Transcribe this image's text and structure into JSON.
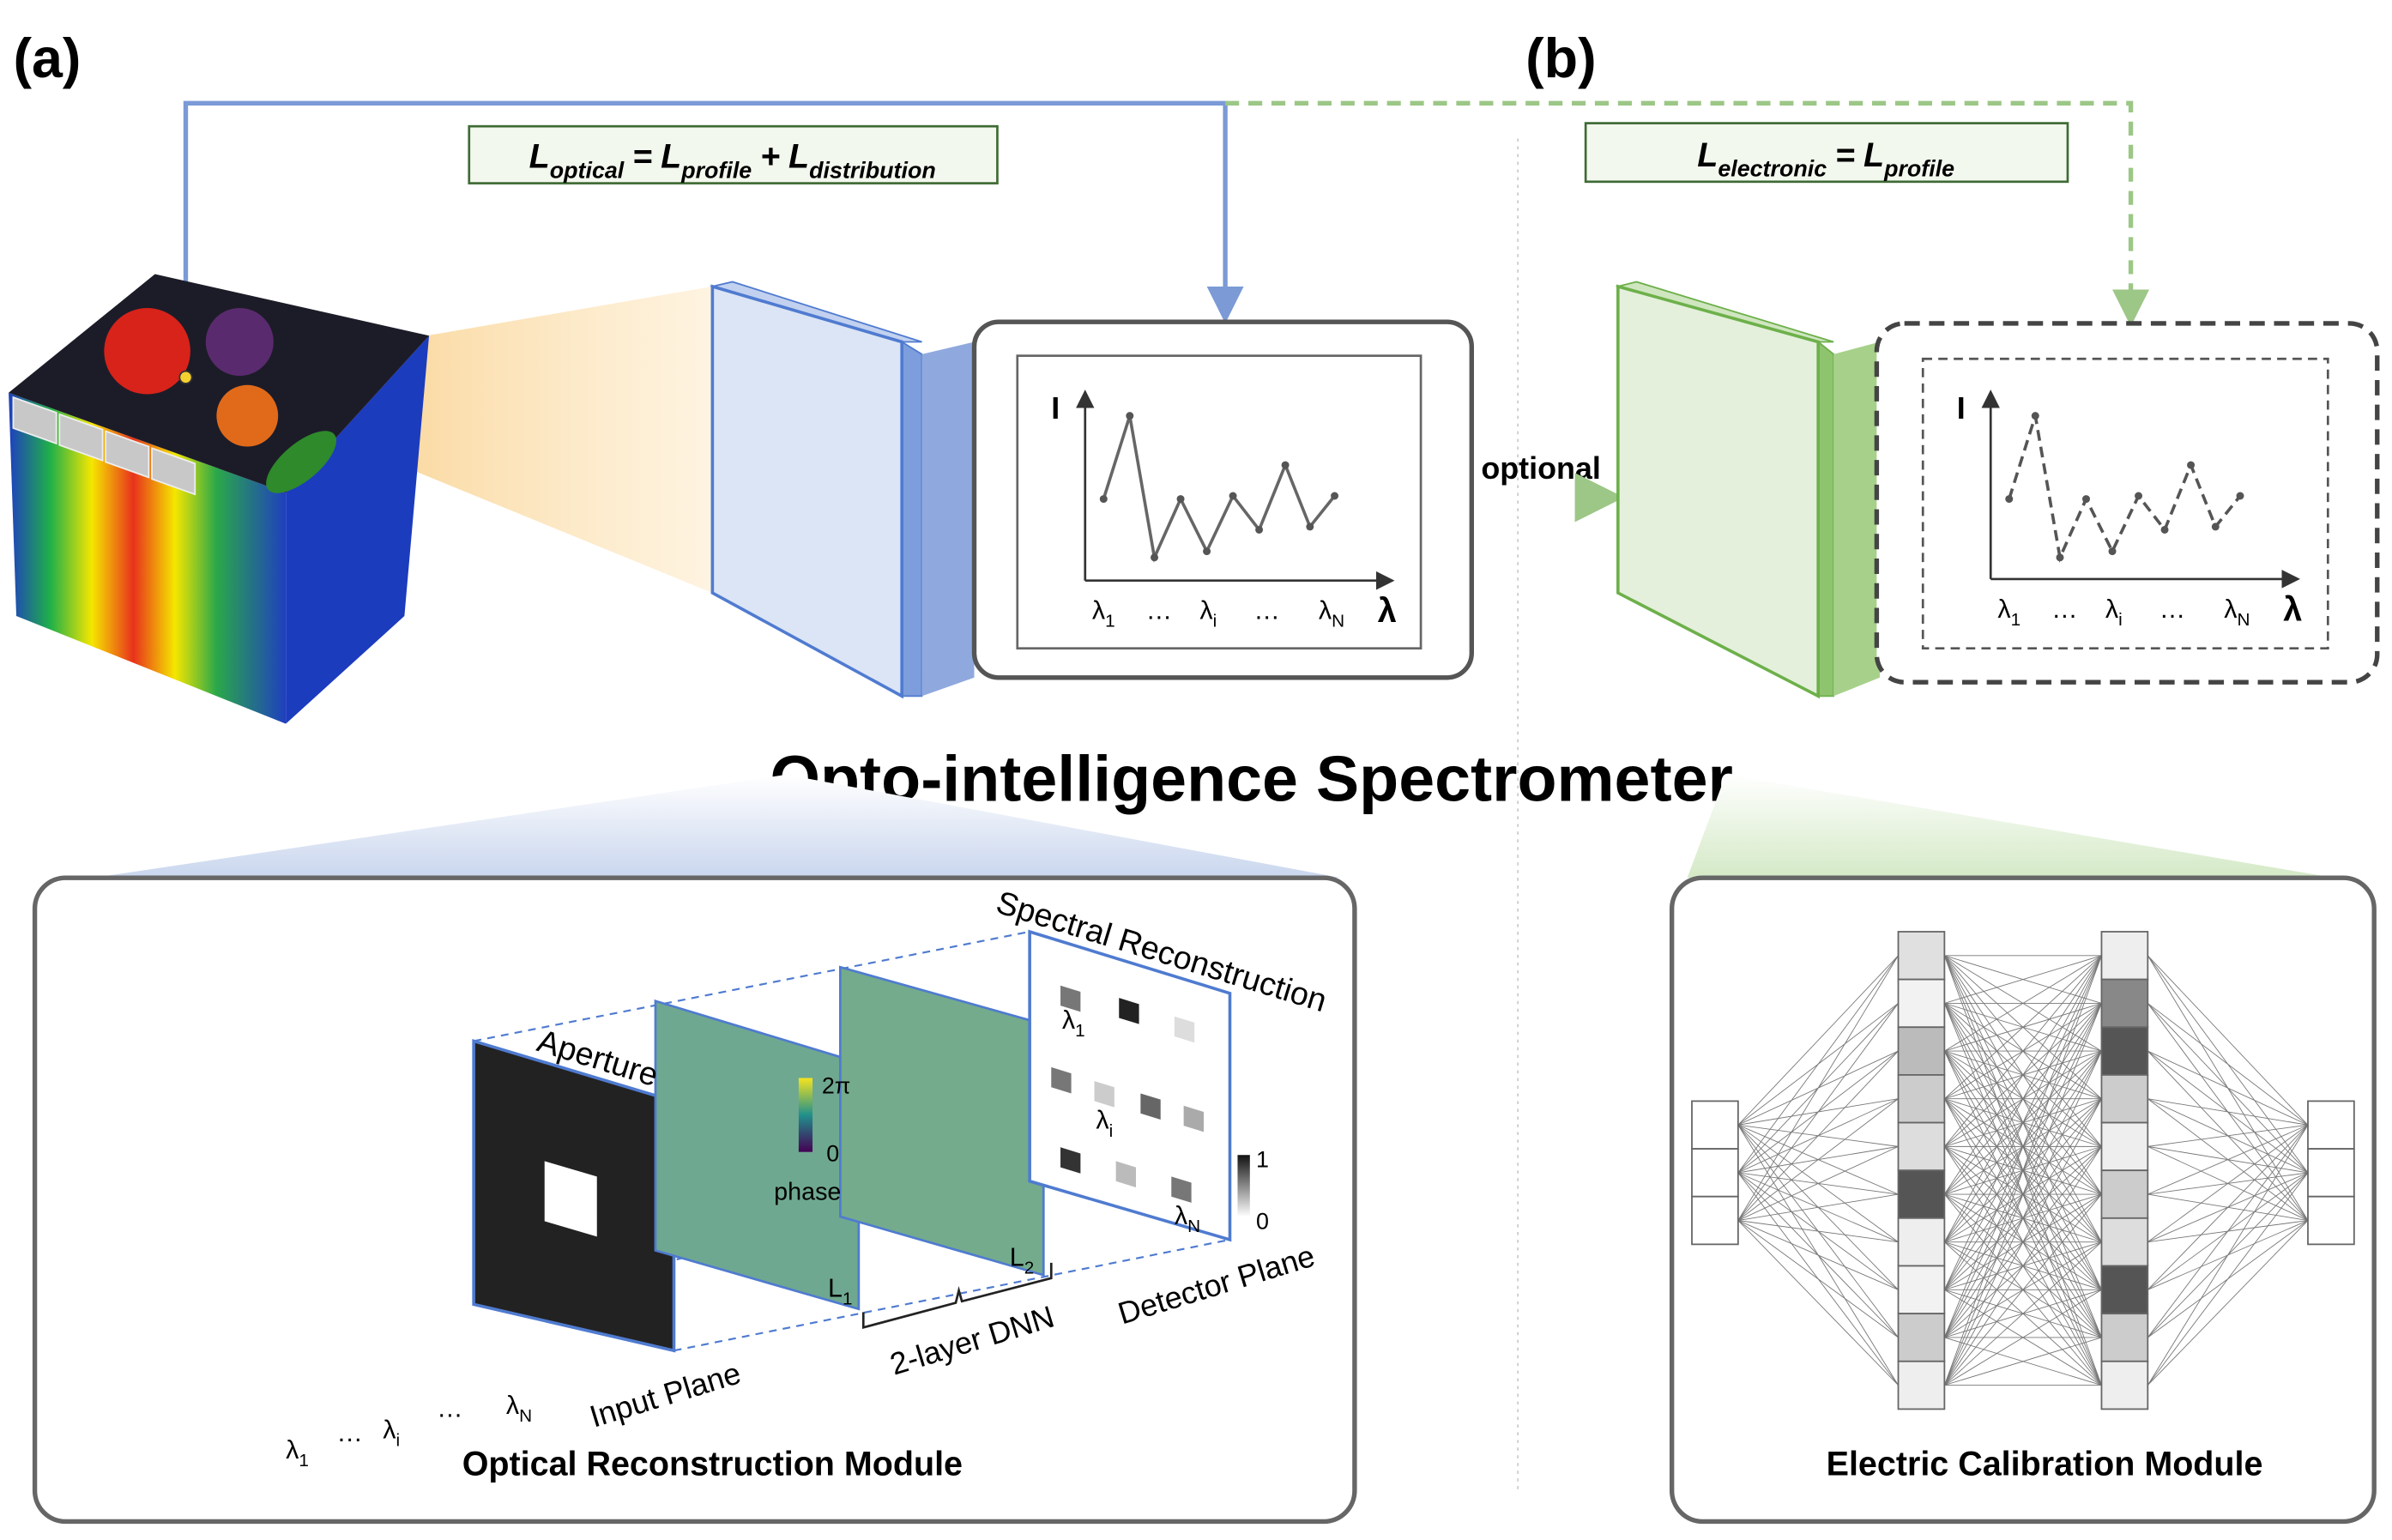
{
  "panel_labels": {
    "a": "(a)",
    "b": "(b)"
  },
  "loss_optical": [
    [
      "L",
      "optical"
    ],
    "=",
    [
      "L",
      "profile"
    ],
    "+",
    [
      "L",
      "distribution"
    ]
  ],
  "loss_electronic": [
    [
      "L",
      "electronic"
    ],
    "=",
    [
      "L",
      "profile"
    ]
  ],
  "title": "Opto-intelligence Spectrometer",
  "optional": "optional",
  "plot_a": {
    "y_label": "I",
    "x_label": "λ",
    "ticks": [
      [
        "λ",
        "1"
      ],
      "…",
      [
        "λ",
        "i"
      ],
      "…",
      [
        "λ",
        "N"
      ]
    ]
  },
  "plot_b": {
    "y_label": "I",
    "x_label": "λ",
    "ticks": [
      [
        "λ",
        "1"
      ],
      "…",
      [
        "λ",
        "i"
      ],
      "…",
      [
        "λ",
        "N"
      ]
    ]
  },
  "optical_module": {
    "title": "Optical Reconstruction Module",
    "aperture": "Aperture",
    "spectral": "Spectral Reconstruction",
    "input_plane": "Input Plane",
    "detector_plane": "Detector Plane",
    "dnn": "2-layer DNN",
    "phase": "phase",
    "phase_max": "2π",
    "phase_min": "0",
    "layer_1": [
      "L",
      "1"
    ],
    "layer_2": [
      "L",
      "2"
    ],
    "gray_max": "1",
    "gray_min": "0",
    "detector_lambdas": [
      [
        "λ",
        "1"
      ],
      [
        "λ",
        "i"
      ],
      [
        "λ",
        "N"
      ]
    ],
    "input_lambdas": [
      [
        "λ",
        "1"
      ],
      "…",
      [
        "λ",
        "i"
      ],
      "…",
      [
        "λ",
        "N"
      ]
    ]
  },
  "electric_module": {
    "title": "Electric Calibration Module"
  }
}
